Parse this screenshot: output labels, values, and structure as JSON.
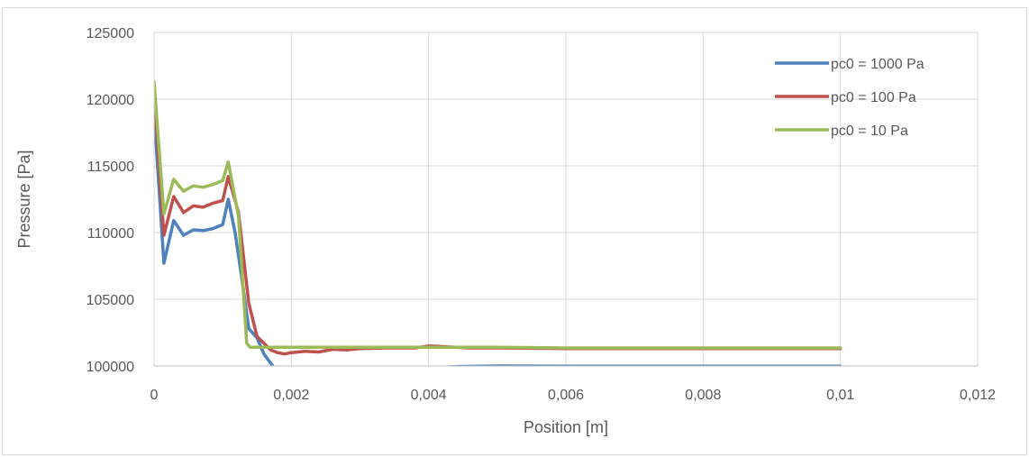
{
  "chart_data": {
    "type": "line",
    "title": "",
    "xlabel": "Position [m]",
    "ylabel": "Pressure [Pa]",
    "xlim": [
      0,
      0.012
    ],
    "ylim": [
      100000,
      125000
    ],
    "x_ticks": [
      0,
      0.002,
      0.004,
      0.006,
      0.008,
      0.01,
      0.012
    ],
    "x_tick_labels": [
      "0",
      "0,002",
      "0,004",
      "0,006",
      "0,008",
      "0,01",
      "0,012"
    ],
    "y_ticks": [
      100000,
      105000,
      110000,
      115000,
      120000,
      125000
    ],
    "y_tick_labels": [
      "100000",
      "105000",
      "110000",
      "115000",
      "120000",
      "125000"
    ],
    "grid": true,
    "legend_position": "top-right",
    "series": [
      {
        "name": "pc0 = 1000 Pa",
        "color": "#4f81bd",
        "x": [
          0,
          0.000143,
          0.000286,
          0.000429,
          0.000571,
          0.000714,
          0.000857,
          0.001,
          0.00108,
          0.00118,
          0.00128,
          0.00138,
          0.0015,
          0.0016,
          0.0017,
          0.0018,
          0.0038,
          0.0044,
          0.005,
          0.006,
          0.008,
          0.01
        ],
        "y": [
          119000,
          107700,
          110900,
          109800,
          110200,
          110150,
          110300,
          110600,
          112500,
          110000,
          106500,
          102800,
          102100,
          100900,
          100200,
          99500,
          99800,
          99950,
          100000,
          99980,
          99980,
          99980
        ]
      },
      {
        "name": "pc0 = 100 Pa",
        "color": "#c0504d",
        "x": [
          0,
          0.000143,
          0.000286,
          0.000429,
          0.000571,
          0.000714,
          0.000857,
          0.001,
          0.00108,
          0.00123,
          0.00138,
          0.0015,
          0.0016,
          0.0017,
          0.0018,
          0.0019,
          0.002,
          0.0022,
          0.0024,
          0.0026,
          0.0028,
          0.003,
          0.0034,
          0.0038,
          0.004,
          0.0042,
          0.0046,
          0.005,
          0.006,
          0.008,
          0.01
        ],
        "y": [
          120500,
          109800,
          112700,
          111500,
          112000,
          111900,
          112200,
          112400,
          114200,
          111500,
          104700,
          102200,
          101700,
          101200,
          101000,
          100900,
          101000,
          101100,
          101050,
          101250,
          101200,
          101300,
          101350,
          101350,
          101500,
          101450,
          101350,
          101350,
          101300,
          101300,
          101300
        ]
      },
      {
        "name": "pc0 = 10 Pa",
        "color": "#9bbb59",
        "x": [
          0,
          0.000143,
          0.000286,
          0.000429,
          0.000571,
          0.000714,
          0.000857,
          0.001,
          0.00108,
          0.00123,
          0.00135,
          0.0014,
          0.0016,
          0.002,
          0.003,
          0.004,
          0.005,
          0.006,
          0.008,
          0.01
        ],
        "y": [
          121300,
          111400,
          114000,
          113100,
          113500,
          113400,
          113600,
          113900,
          115300,
          111200,
          101700,
          101400,
          101400,
          101400,
          101400,
          101400,
          101400,
          101350,
          101350,
          101350
        ]
      }
    ]
  }
}
